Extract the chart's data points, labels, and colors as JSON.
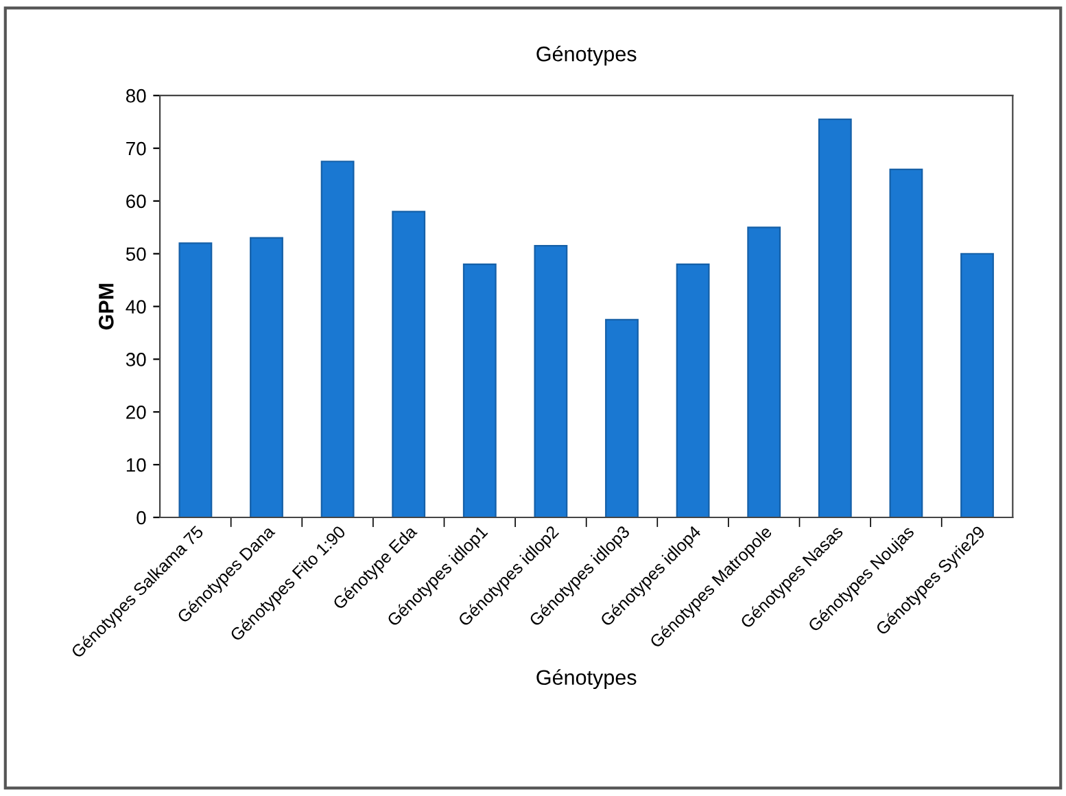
{
  "chart_data": {
    "type": "bar",
    "title": "Génotypes",
    "xlabel": "Génotypes",
    "ylabel": "GPM",
    "categories": [
      "Génotypes Salkama 75",
      "Génotypes Dana",
      "Génotypes Fito 1:90",
      "Génotype Eda",
      "Génotypes idlop1",
      "Génotypes idlop2",
      "Génotypes idlop3",
      "Génotypes idlop4",
      "Génotypes Matropole",
      "Génotypes Nasas",
      "Génotypes Noujas",
      "Génotypes Syrie29"
    ],
    "values": [
      52,
      53,
      67.5,
      58,
      48,
      51.5,
      37.5,
      48,
      55,
      75.5,
      66,
      50
    ],
    "color": "#1a78d2",
    "ylim": [
      0,
      80
    ],
    "yticks": [
      0,
      10,
      20,
      30,
      40,
      50,
      60,
      70,
      80
    ],
    "grid": false,
    "legend": false
  }
}
